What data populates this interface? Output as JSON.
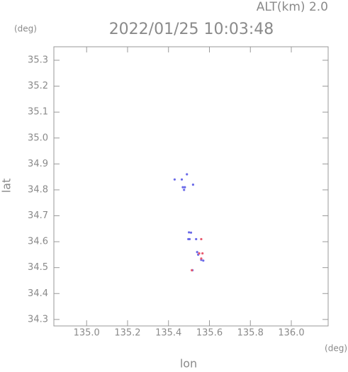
{
  "chart_data": {
    "type": "scatter",
    "title": "2022/01/25 10:03:48",
    "altitude_label": "ALT(km) 2.0",
    "y_unit": "(deg)",
    "x_unit": "(deg)",
    "xlabel": "lon",
    "ylabel": "lat",
    "xlim": [
      134.84,
      136.18
    ],
    "ylim": [
      34.275,
      35.352
    ],
    "xticks": [
      {
        "value": 135.0,
        "label": "135.0"
      },
      135.2,
      135.4,
      135.6,
      135.8,
      {
        "value": 136.0,
        "label": "136.0"
      }
    ],
    "yticks": [
      35.3,
      35.2,
      35.1,
      {
        "value": 35.0,
        "label": "35.0"
      },
      34.9,
      34.8,
      34.7,
      34.6,
      34.5,
      34.4,
      34.3
    ],
    "series": [
      {
        "color": "#6a6ae8",
        "x": [
          135.49,
          135.43,
          135.465,
          135.52,
          135.47,
          135.476,
          135.48,
          135.5,
          135.51,
          135.497,
          135.503,
          135.535,
          135.54,
          135.545,
          135.56,
          135.57,
          135.517
        ],
        "values": [
          34.86,
          34.84,
          34.84,
          34.82,
          34.81,
          34.8,
          34.81,
          34.636,
          34.635,
          34.61,
          34.61,
          34.61,
          34.56,
          34.55,
          34.53,
          34.527,
          34.49
        ]
      },
      {
        "color": "#e85a6e",
        "x": [
          135.56,
          135.55,
          135.566,
          135.56,
          135.514
        ],
        "values": [
          34.61,
          34.555,
          34.555,
          34.535,
          34.49
        ]
      }
    ]
  }
}
